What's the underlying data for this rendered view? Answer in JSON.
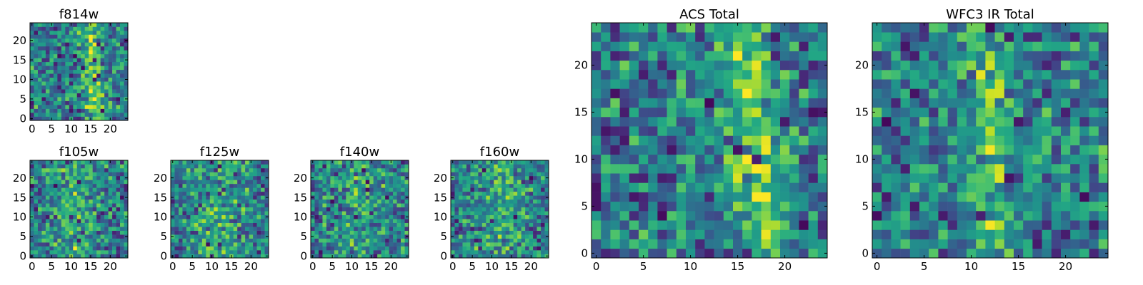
{
  "figure": {
    "description_colormap": "viridis",
    "colors": {
      "low": "#440154",
      "mid": "#21918c",
      "high": "#fde725"
    }
  },
  "chart_data": [
    {
      "id": "f814w",
      "type": "heatmap",
      "title": "f814w",
      "grid_size": 25,
      "x_ticks": [
        "0",
        "5",
        "10",
        "15",
        "20"
      ],
      "y_ticks": [
        "0",
        "5",
        "10",
        "15",
        "20"
      ],
      "xlim": [
        -0.5,
        24.5
      ],
      "ylim": [
        -0.5,
        24.5
      ],
      "seed": 11,
      "bright_band": {
        "axis": "x",
        "center": 15.5,
        "width": 1.8,
        "strength": 0.35,
        "slope": 0.08
      }
    },
    {
      "id": "f105w",
      "type": "heatmap",
      "title": "f105w",
      "grid_size": 25,
      "x_ticks": [
        "0",
        "5",
        "10",
        "15",
        "20"
      ],
      "y_ticks": [
        "0",
        "5",
        "10",
        "15",
        "20"
      ],
      "xlim": [
        -0.5,
        24.5
      ],
      "ylim": [
        -0.5,
        24.5
      ],
      "seed": 23,
      "bright_band": {
        "axis": "x",
        "center": 11,
        "width": 4,
        "strength": 0.2,
        "slope": 0
      }
    },
    {
      "id": "f125w",
      "type": "heatmap",
      "title": "f125w",
      "grid_size": 25,
      "x_ticks": [
        "0",
        "5",
        "10",
        "15",
        "20"
      ],
      "y_ticks": [
        "0",
        "5",
        "10",
        "15",
        "20"
      ],
      "xlim": [
        -0.5,
        24.5
      ],
      "ylim": [
        -0.5,
        24.5
      ],
      "seed": 37,
      "bright_band": {
        "axis": "x",
        "center": 12,
        "width": 5,
        "strength": 0.15,
        "slope": 0
      }
    },
    {
      "id": "f140w",
      "type": "heatmap",
      "title": "f140w",
      "grid_size": 25,
      "x_ticks": [
        "0",
        "5",
        "10",
        "15",
        "20"
      ],
      "y_ticks": [
        "0",
        "5",
        "10",
        "15",
        "20"
      ],
      "xlim": [
        -0.5,
        24.5
      ],
      "ylim": [
        -0.5,
        24.5
      ],
      "seed": 41,
      "bright_band": {
        "axis": "x",
        "center": 12,
        "width": 5,
        "strength": 0.12,
        "slope": 0
      }
    },
    {
      "id": "f160w",
      "type": "heatmap",
      "title": "f160w",
      "grid_size": 25,
      "x_ticks": [
        "0",
        "5",
        "10",
        "15",
        "20"
      ],
      "y_ticks": [
        "0",
        "5",
        "10",
        "15",
        "20"
      ],
      "xlim": [
        -0.5,
        24.5
      ],
      "ylim": [
        -0.5,
        24.5
      ],
      "seed": 53,
      "bright_band": {
        "axis": "x",
        "center": 12,
        "width": 5,
        "strength": 0.15,
        "slope": 0
      }
    },
    {
      "id": "acs-total",
      "type": "heatmap",
      "title": "ACS Total",
      "grid_size": 25,
      "x_ticks": [
        "0",
        "5",
        "10",
        "15",
        "20"
      ],
      "y_ticks": [
        "0",
        "5",
        "10",
        "15",
        "20"
      ],
      "xlim": [
        -0.5,
        24.5
      ],
      "ylim": [
        -0.5,
        24.5
      ],
      "seed": 67,
      "bright_band": {
        "axis": "x",
        "center": 17,
        "width": 2.2,
        "strength": 0.32,
        "slope": 0.12
      }
    },
    {
      "id": "wfc3-ir-total",
      "type": "heatmap",
      "title": "WFC3 IR Total",
      "grid_size": 25,
      "x_ticks": [
        "0",
        "5",
        "10",
        "15",
        "20"
      ],
      "y_ticks": [
        "0",
        "5",
        "10",
        "15",
        "20"
      ],
      "xlim": [
        -0.5,
        24.5
      ],
      "ylim": [
        -0.5,
        24.5
      ],
      "seed": 79,
      "bright_band": {
        "axis": "x",
        "center": 12,
        "width": 2,
        "strength": 0.25,
        "slope": 0
      }
    }
  ]
}
